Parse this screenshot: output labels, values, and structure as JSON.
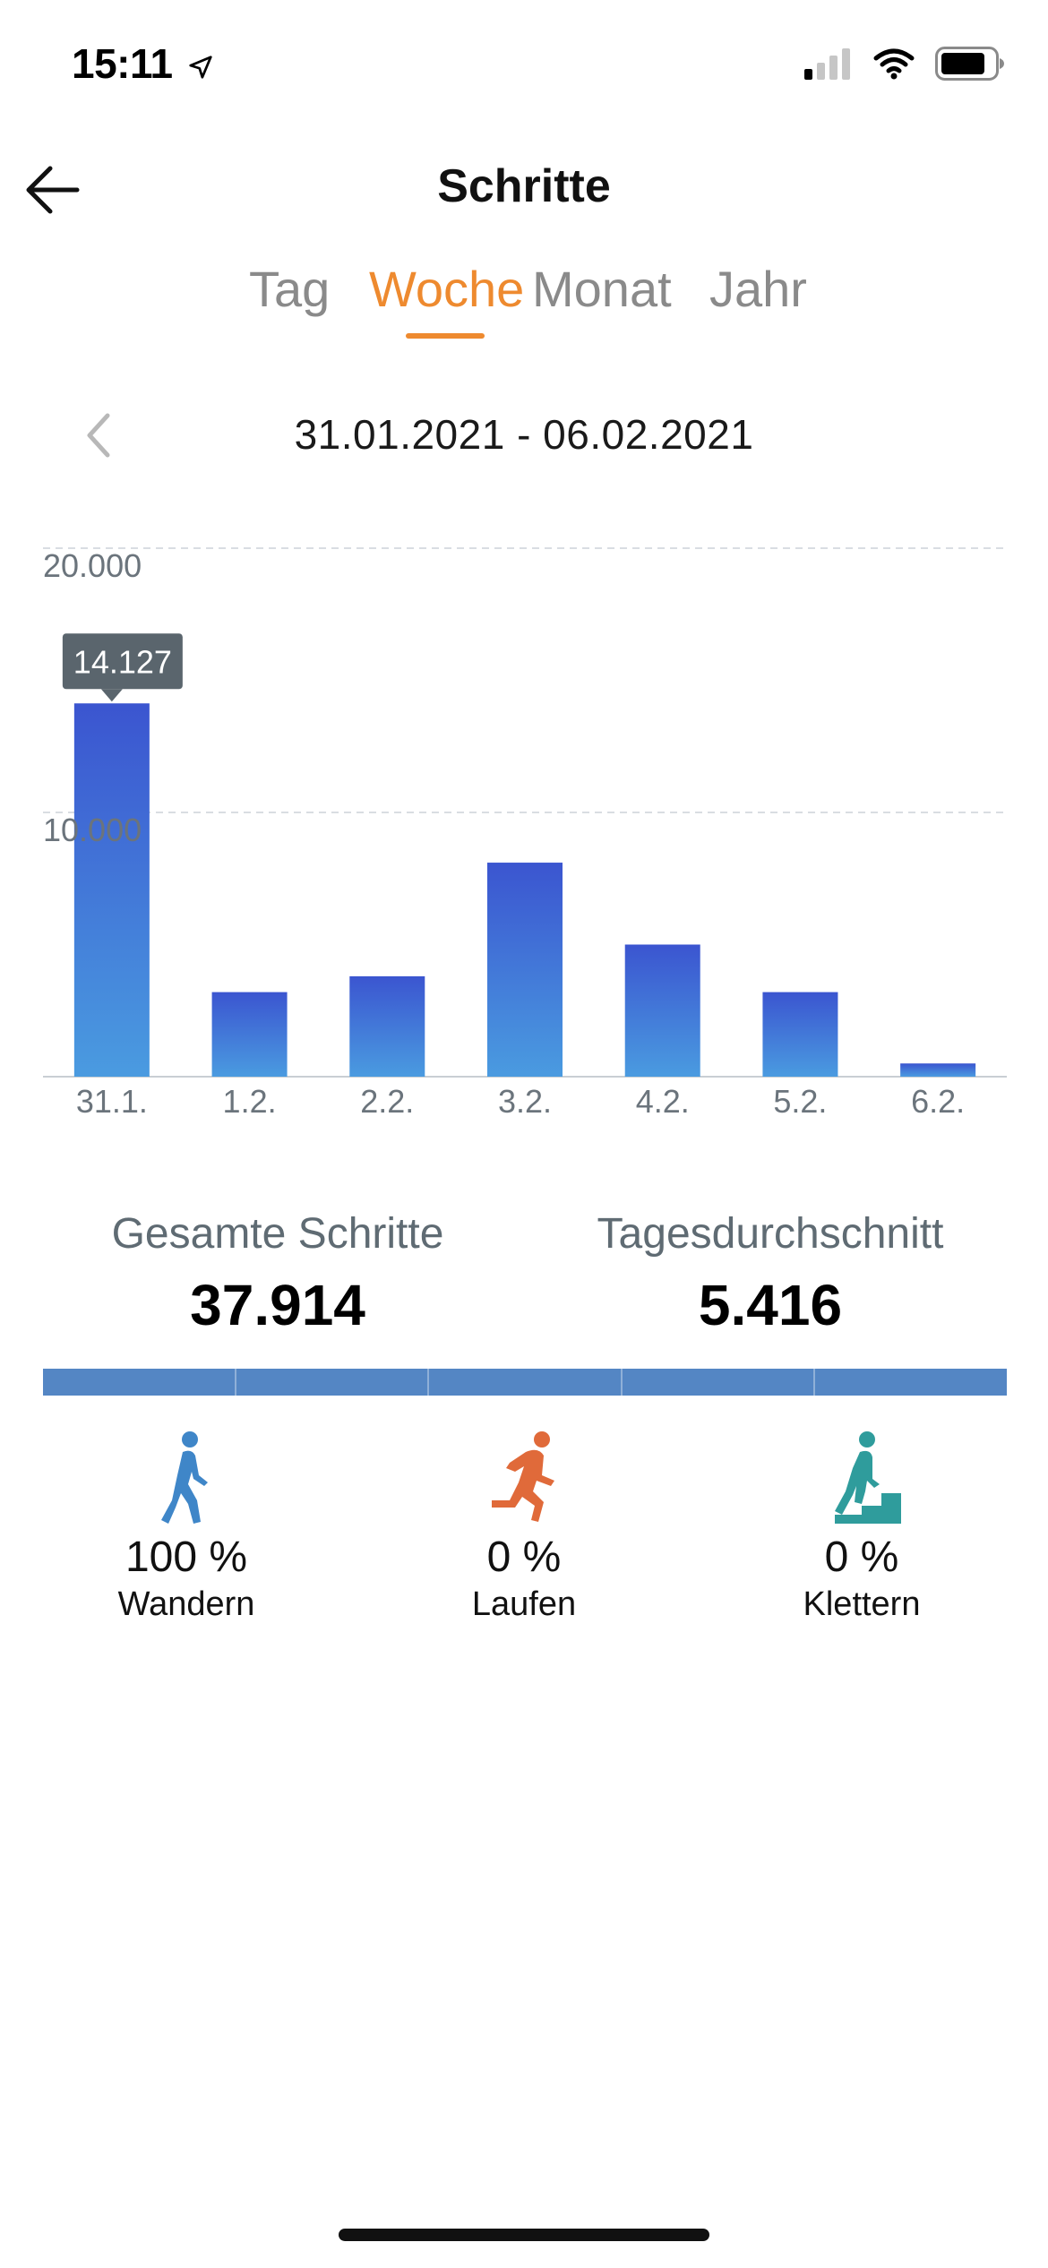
{
  "status_bar": {
    "time": "15:11"
  },
  "header": {
    "title": "Schritte"
  },
  "tabs": [
    {
      "label": "Tag",
      "active": false
    },
    {
      "label": "Woche",
      "active": true
    },
    {
      "label": "Monat",
      "active": false
    },
    {
      "label": "Jahr",
      "active": false
    }
  ],
  "date_range": "31.01.2021 - 06.02.2021",
  "colors": {
    "accent": "#ee8a2f",
    "bar_top": "#3b55d0",
    "bar_bottom": "#4a9be0",
    "walking": "#3f86c8",
    "running": "#e06a3a",
    "climbing": "#2f9c9c"
  },
  "chart_data": {
    "type": "bar",
    "categories": [
      "31.1.",
      "1.2.",
      "2.2.",
      "3.2.",
      "4.2.",
      "5.2.",
      "6.2."
    ],
    "values": [
      14127,
      3200,
      3800,
      8100,
      5000,
      3200,
      500
    ],
    "ylim": [
      0,
      20000
    ],
    "y_ticks": [
      {
        "value": 10000,
        "label": "10.000"
      },
      {
        "value": 20000,
        "label": "20.000"
      }
    ],
    "tooltip": {
      "index": 0,
      "label": "14.127"
    },
    "grid": true
  },
  "summary": {
    "total_label": "Gesamte Schritte",
    "total_value": "37.914",
    "avg_label": "Tagesdurchschnitt",
    "avg_value": "5.416"
  },
  "activities": [
    {
      "icon": "walking-icon",
      "percent": "100 %",
      "label": "Wandern"
    },
    {
      "icon": "running-icon",
      "percent": "0 %",
      "label": "Laufen"
    },
    {
      "icon": "climbing-icon",
      "percent": "0 %",
      "label": "Klettern"
    }
  ]
}
